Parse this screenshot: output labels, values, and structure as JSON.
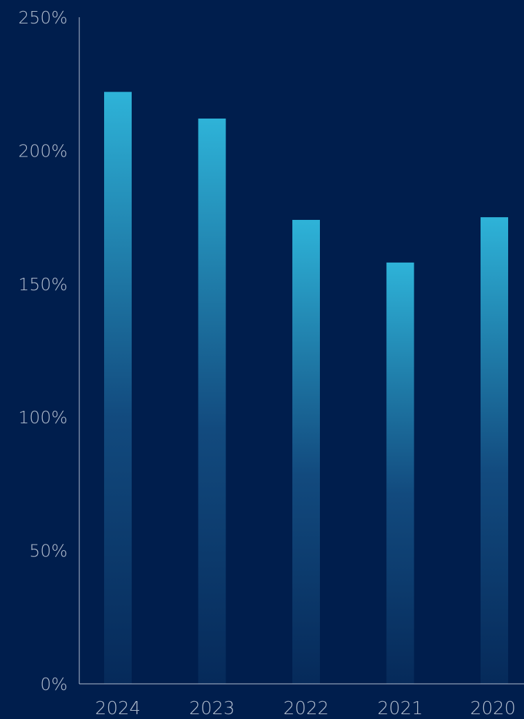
{
  "chart_data": {
    "type": "bar",
    "categories": [
      "2024",
      "2023",
      "2022",
      "2021",
      "2020"
    ],
    "values": [
      222,
      212,
      174,
      158,
      175
    ],
    "ylim": [
      0,
      250
    ],
    "yticks": [
      "0%",
      "50%",
      "100%",
      "150%",
      "200%",
      "250%"
    ],
    "ytick_values": [
      0,
      50,
      100,
      150,
      200,
      250
    ],
    "grid": false,
    "colors": {
      "background": "#001e4d",
      "bar_top": "#2eb3d8",
      "bar_bottom": "#062a5a",
      "axis": "#b9c3d3",
      "tick_label": "#b4bfd0"
    }
  }
}
